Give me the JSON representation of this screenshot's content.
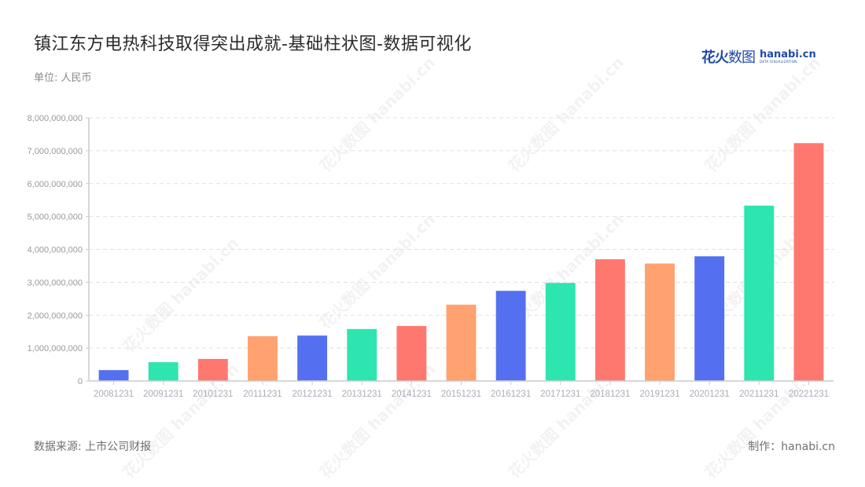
{
  "header": {
    "title": "镇江东方电热科技取得突出成就-基础柱状图-数据可视化",
    "unit": "单位: 人民币"
  },
  "logo": {
    "cn_bold": "花火",
    "cn_thin": "数图",
    "en": "hanabi.cn",
    "en_sub": "DATA VISUALIZATION"
  },
  "footer": {
    "source": "数据来源: 上市公司财报",
    "credit": "制作：hanabi.cn"
  },
  "watermark": {
    "text": "花火数图 hanabi.cn"
  },
  "colors": {
    "blue": "#5470f0",
    "green": "#2de5ae",
    "red": "#ff7870",
    "orange": "#ffa26f",
    "grid": "#e0e0e0",
    "axis": "#cccccc"
  },
  "chart_data": {
    "type": "bar",
    "title": "镇江东方电热科技取得突出成就-基础柱状图-数据可视化",
    "subtitle": "单位: 人民币",
    "xlabel": "",
    "ylabel": "",
    "ylim": [
      0,
      8000000000
    ],
    "yticks": [
      0,
      1000000000,
      2000000000,
      3000000000,
      4000000000,
      5000000000,
      6000000000,
      7000000000,
      8000000000
    ],
    "ytick_labels": [
      "0",
      "1,000,000,000",
      "2,000,000,000",
      "3,000,000,000",
      "4,000,000,000",
      "5,000,000,000",
      "6,000,000,000",
      "7,000,000,000",
      "8,000,000,000"
    ],
    "grid": true,
    "legend": null,
    "categories": [
      "20081231",
      "20091231",
      "20101231",
      "20111231",
      "20121231",
      "20131231",
      "20141231",
      "20151231",
      "20161231",
      "20171231",
      "20181231",
      "20191231",
      "20201231",
      "20211231",
      "20221231"
    ],
    "values": [
      330000000,
      570000000,
      670000000,
      1360000000,
      1380000000,
      1580000000,
      1670000000,
      2320000000,
      2740000000,
      2980000000,
      3700000000,
      3570000000,
      3790000000,
      5330000000,
      7230000000
    ],
    "bar_colors": [
      "#5470f0",
      "#2de5ae",
      "#ff7870",
      "#ffa26f",
      "#5470f0",
      "#2de5ae",
      "#ff7870",
      "#ffa26f",
      "#5470f0",
      "#2de5ae",
      "#ff7870",
      "#ffa26f",
      "#5470f0",
      "#2de5ae",
      "#ff7870"
    ]
  }
}
